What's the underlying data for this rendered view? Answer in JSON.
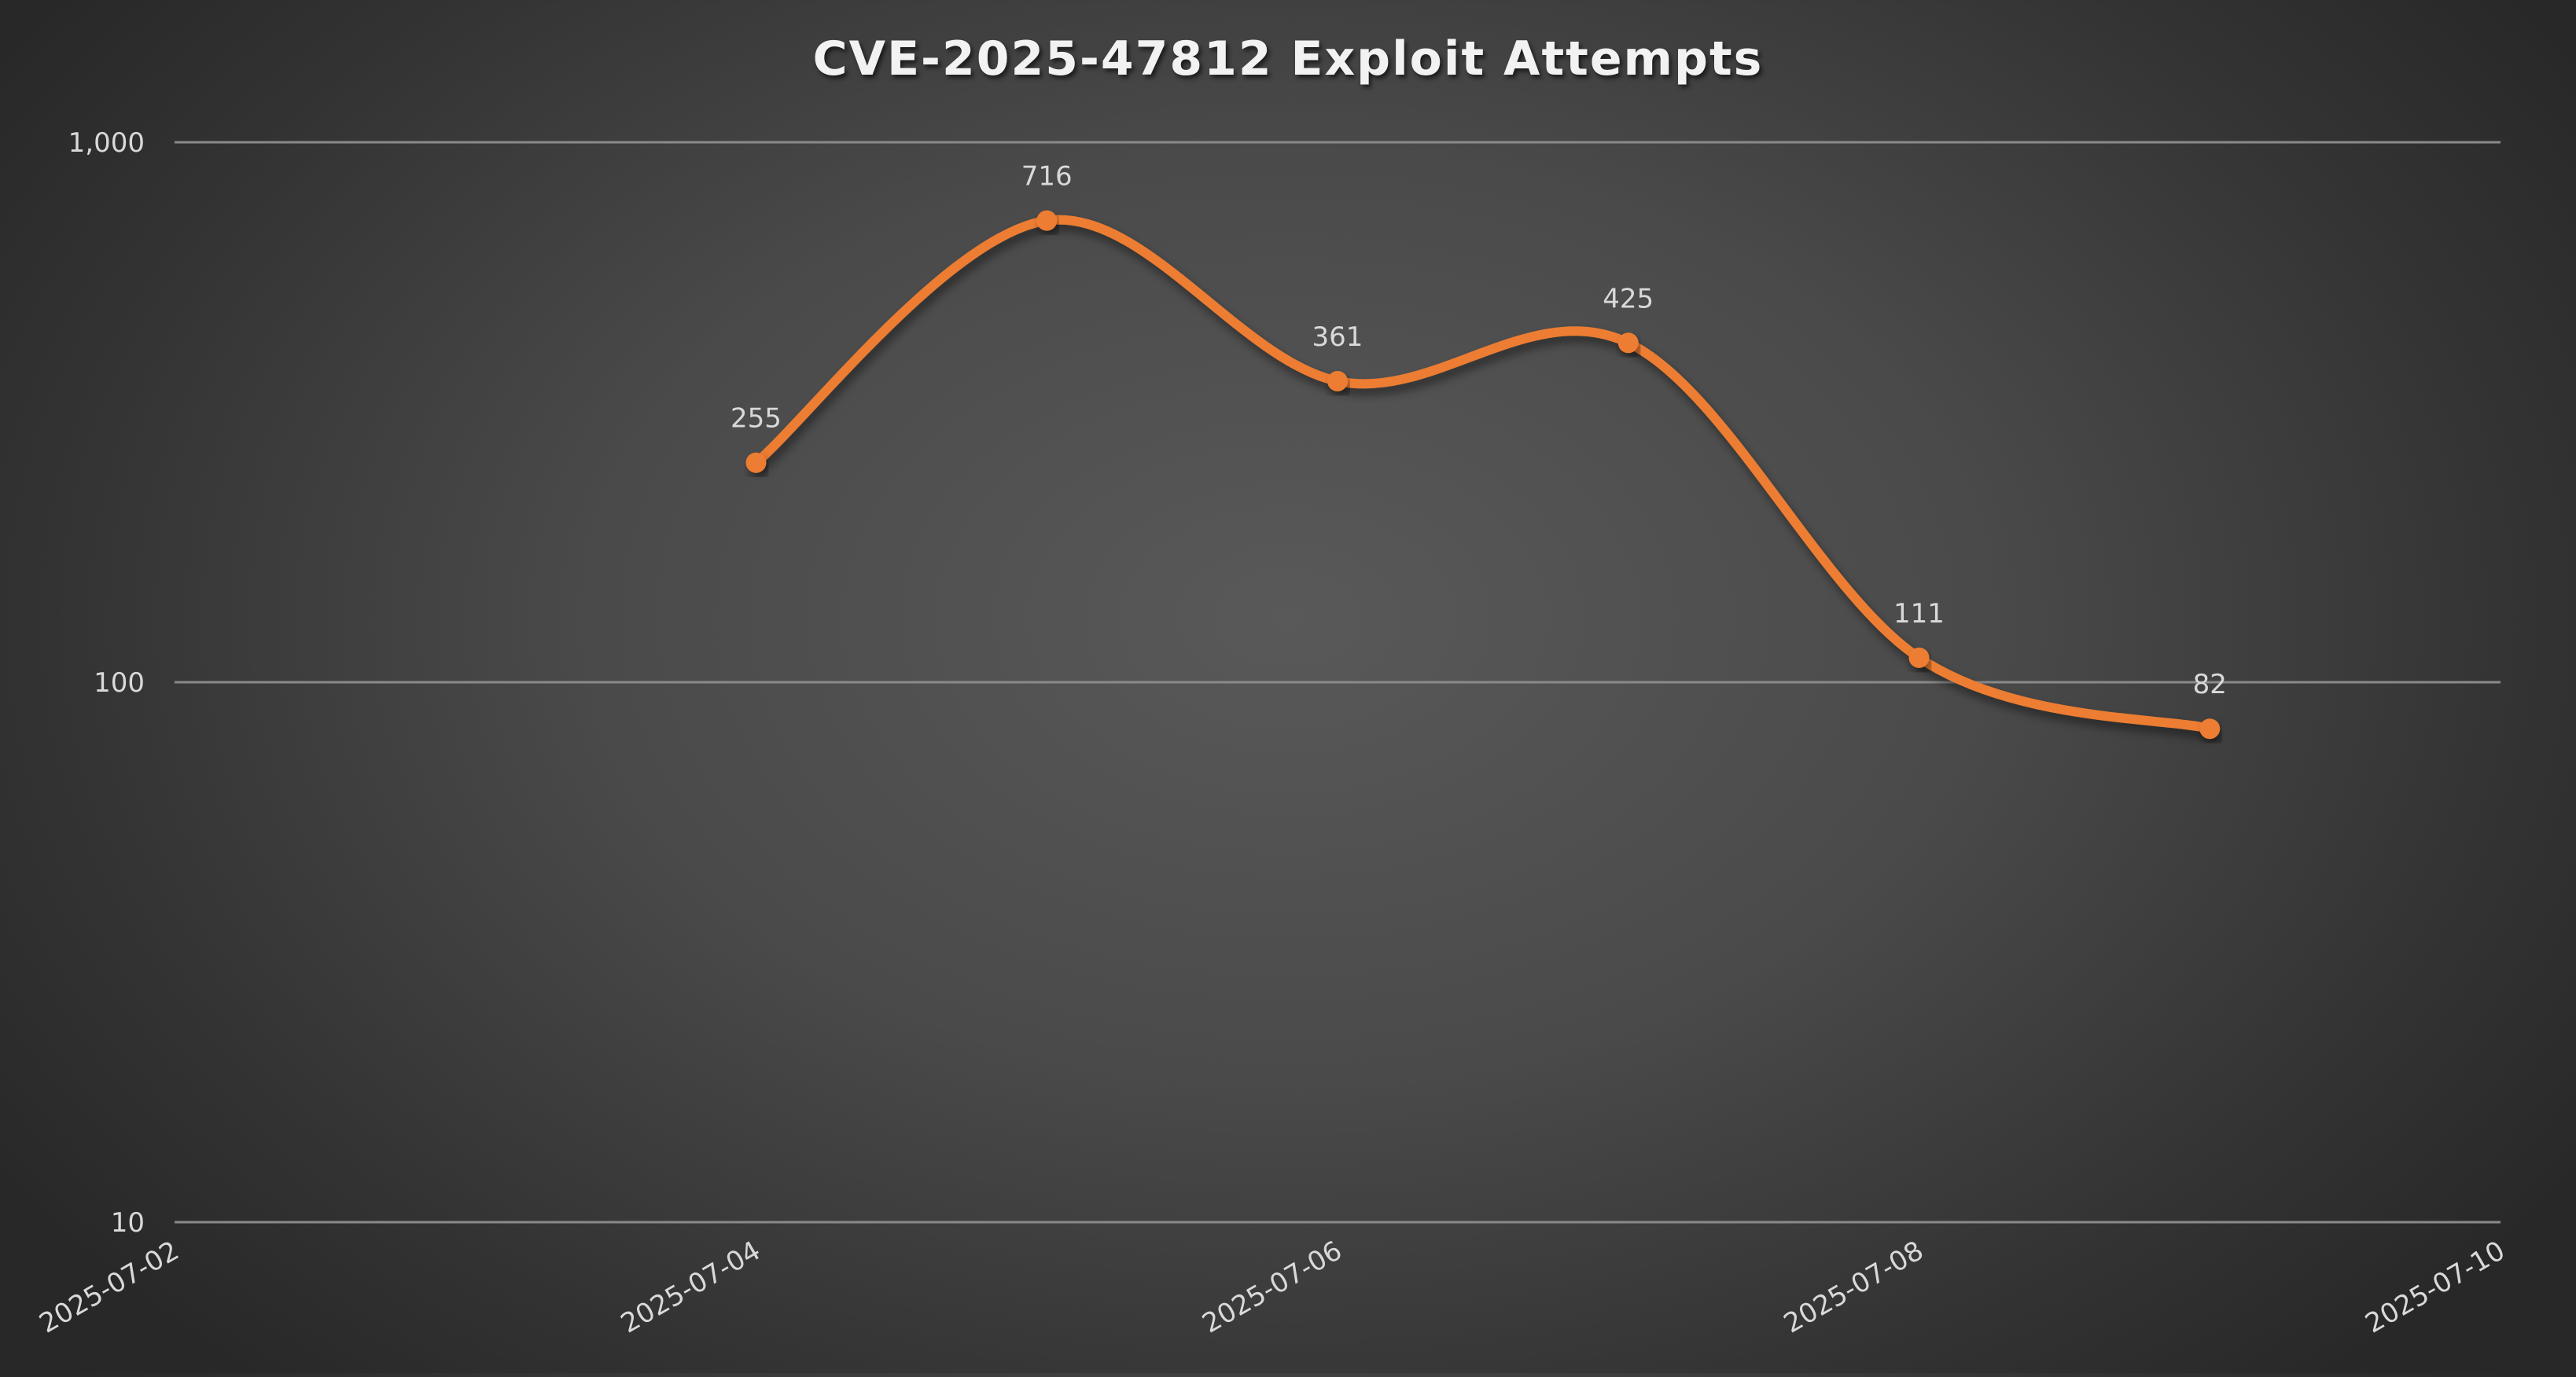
{
  "chart_data": {
    "type": "line",
    "title": "CVE-2025-47812 Exploit Attempts",
    "xlabel": "",
    "ylabel": "",
    "y_scale": "log",
    "ylim": [
      10,
      1000
    ],
    "y_ticks": [
      {
        "value": 1000,
        "label": "1,000"
      },
      {
        "value": 100,
        "label": "100"
      },
      {
        "value": 10,
        "label": "10"
      }
    ],
    "x_range": [
      "2025-07-02",
      "2025-07-10"
    ],
    "x_ticks": [
      "2025-07-02",
      "2025-07-04",
      "2025-07-06",
      "2025-07-08",
      "2025-07-10"
    ],
    "grid": {
      "horizontal": true,
      "vertical": false
    },
    "legend": "none",
    "smooth": true,
    "series": [
      {
        "name": "Exploit Attempts",
        "color": "#ed7d31",
        "points": [
          {
            "x": "2025-07-04",
            "y": 255,
            "label": "255"
          },
          {
            "x": "2025-07-05",
            "y": 716,
            "label": "716"
          },
          {
            "x": "2025-07-06",
            "y": 361,
            "label": "361"
          },
          {
            "x": "2025-07-07",
            "y": 425,
            "label": "425"
          },
          {
            "x": "2025-07-08",
            "y": 111,
            "label": "111"
          },
          {
            "x": "2025-07-09",
            "y": 82,
            "label": "82"
          }
        ]
      }
    ]
  },
  "colors": {
    "line": "#ed7d31",
    "gridline": "#8a8a8a",
    "text": "#d9d9d9",
    "title": "#f2f2f2"
  }
}
